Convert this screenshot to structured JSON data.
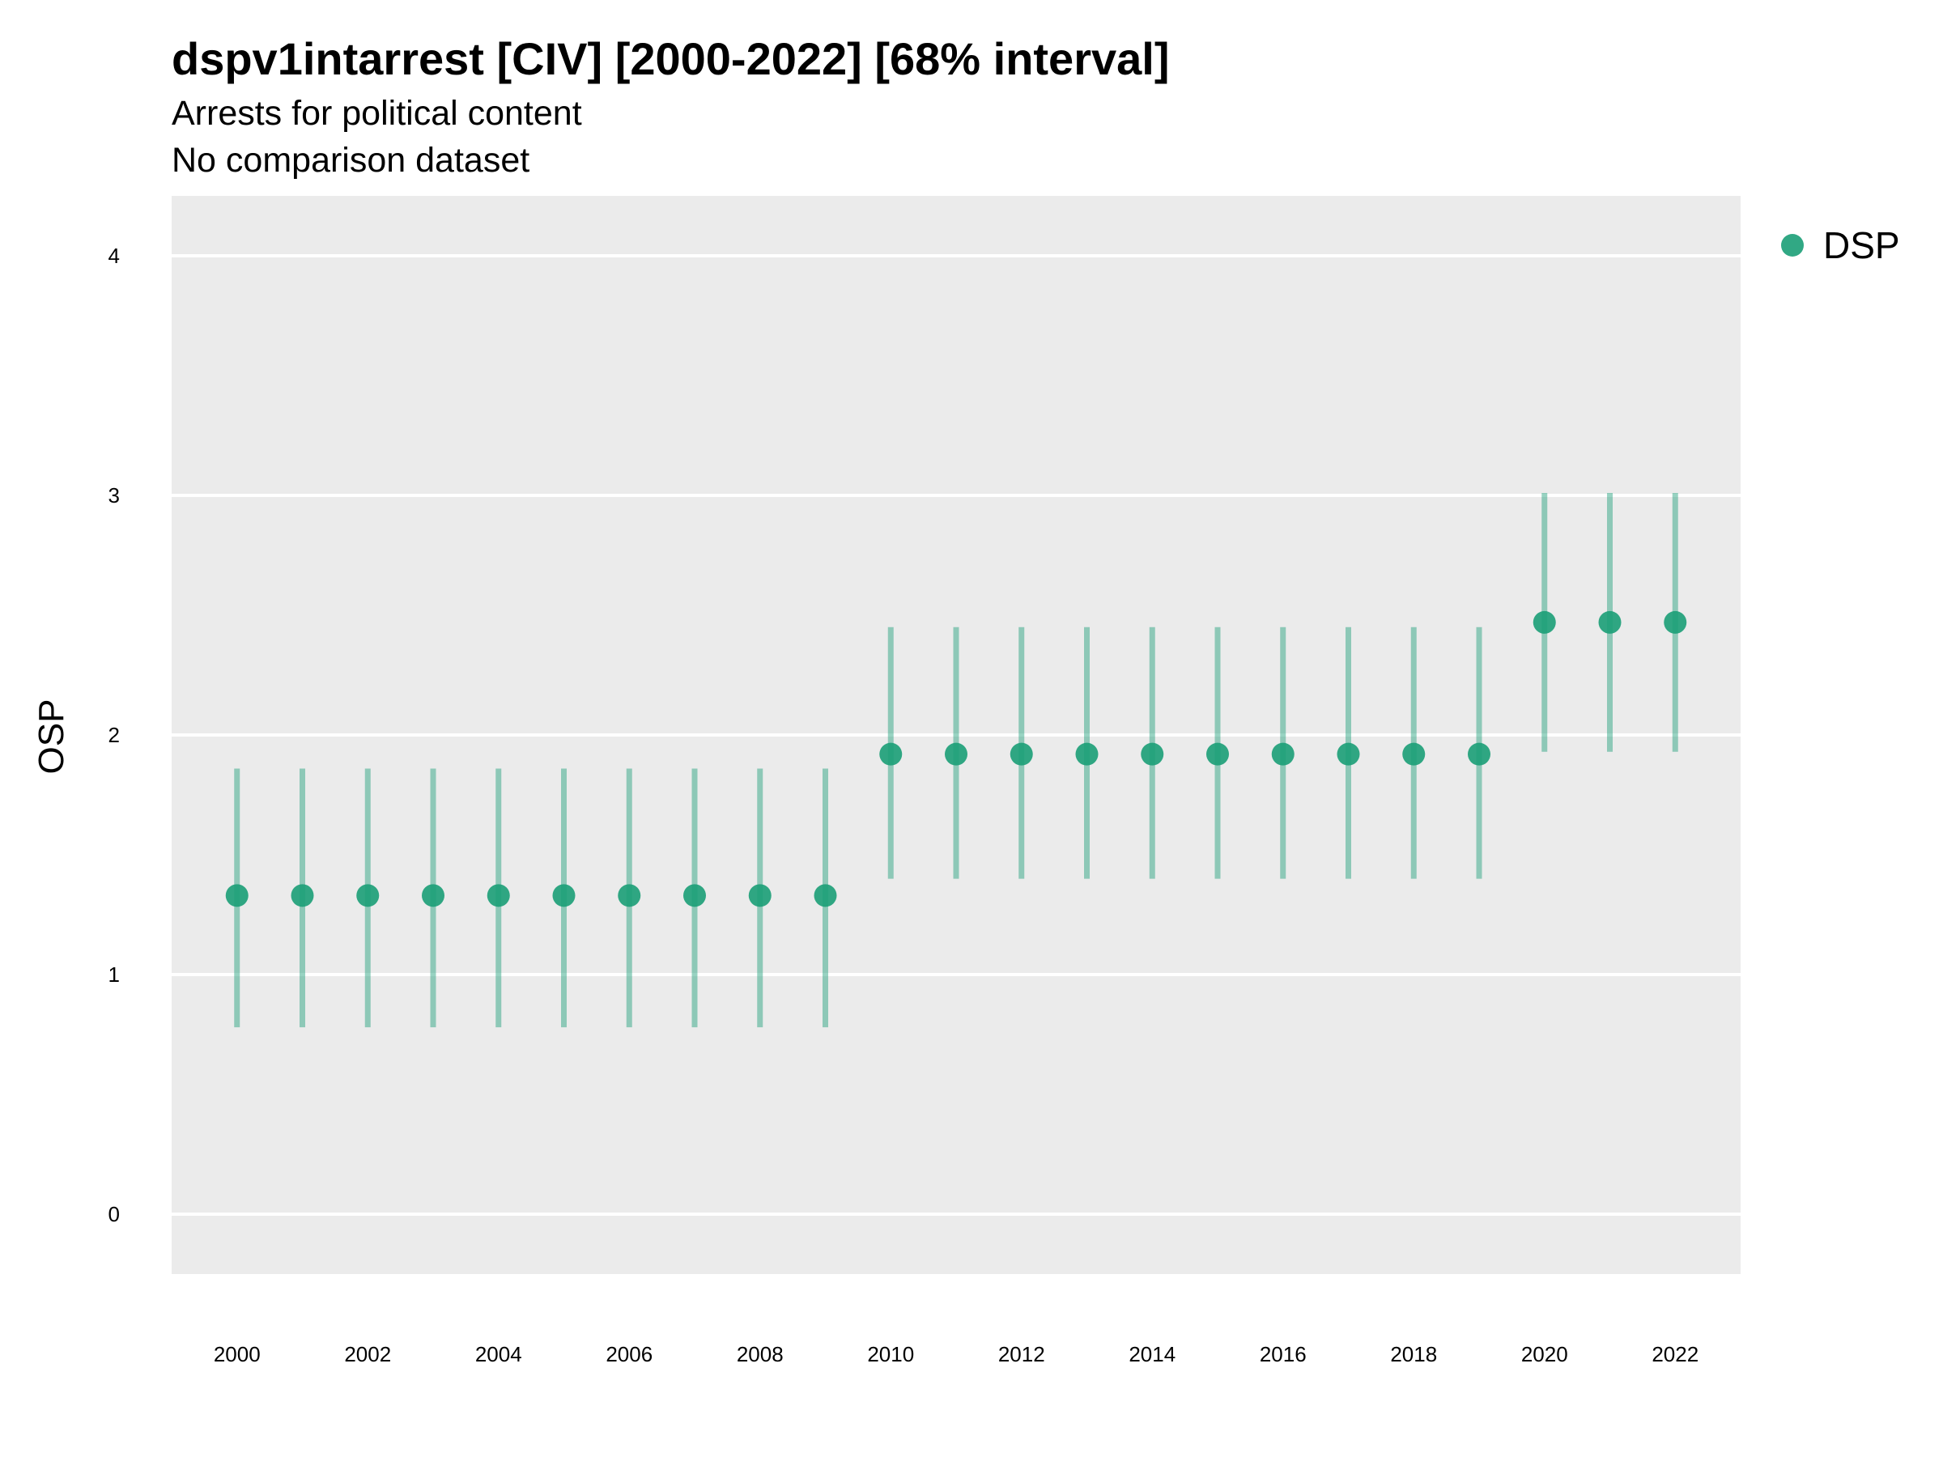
{
  "chart_data": {
    "type": "scatter",
    "title": "dspv1intarrest [CIV] [2000-2022] [68% interval]",
    "subtitle": [
      "Arrests for political content",
      "No comparison dataset"
    ],
    "xlabel": "",
    "ylabel": "OSP",
    "xlim": [
      1999,
      2023
    ],
    "ylim": [
      -0.25,
      4.25
    ],
    "x_ticks": [
      "2000",
      "2002",
      "2004",
      "2006",
      "2008",
      "2010",
      "2012",
      "2014",
      "2016",
      "2018",
      "2020",
      "2022"
    ],
    "y_ticks": [
      "0",
      "1",
      "2",
      "3",
      "4"
    ],
    "grid": true,
    "legend_position": "right",
    "series": [
      {
        "name": "DSP",
        "color": "#1b9e77",
        "points": [
          {
            "x": 2000,
            "y": 1.33,
            "low": 0.78,
            "high": 1.86
          },
          {
            "x": 2001,
            "y": 1.33,
            "low": 0.78,
            "high": 1.86
          },
          {
            "x": 2002,
            "y": 1.33,
            "low": 0.78,
            "high": 1.86
          },
          {
            "x": 2003,
            "y": 1.33,
            "low": 0.78,
            "high": 1.86
          },
          {
            "x": 2004,
            "y": 1.33,
            "low": 0.78,
            "high": 1.86
          },
          {
            "x": 2005,
            "y": 1.33,
            "low": 0.78,
            "high": 1.86
          },
          {
            "x": 2006,
            "y": 1.33,
            "low": 0.78,
            "high": 1.86
          },
          {
            "x": 2007,
            "y": 1.33,
            "low": 0.78,
            "high": 1.86
          },
          {
            "x": 2008,
            "y": 1.33,
            "low": 0.78,
            "high": 1.86
          },
          {
            "x": 2009,
            "y": 1.33,
            "low": 0.78,
            "high": 1.86
          },
          {
            "x": 2010,
            "y": 1.92,
            "low": 1.4,
            "high": 2.45
          },
          {
            "x": 2011,
            "y": 1.92,
            "low": 1.4,
            "high": 2.45
          },
          {
            "x": 2012,
            "y": 1.92,
            "low": 1.4,
            "high": 2.45
          },
          {
            "x": 2013,
            "y": 1.92,
            "low": 1.4,
            "high": 2.45
          },
          {
            "x": 2014,
            "y": 1.92,
            "low": 1.4,
            "high": 2.45
          },
          {
            "x": 2015,
            "y": 1.92,
            "low": 1.4,
            "high": 2.45
          },
          {
            "x": 2016,
            "y": 1.92,
            "low": 1.4,
            "high": 2.45
          },
          {
            "x": 2017,
            "y": 1.92,
            "low": 1.4,
            "high": 2.45
          },
          {
            "x": 2018,
            "y": 1.92,
            "low": 1.4,
            "high": 2.45
          },
          {
            "x": 2019,
            "y": 1.92,
            "low": 1.4,
            "high": 2.45
          },
          {
            "x": 2020,
            "y": 2.47,
            "low": 1.93,
            "high": 3.01
          },
          {
            "x": 2021,
            "y": 2.47,
            "low": 1.93,
            "high": 3.01
          },
          {
            "x": 2022,
            "y": 2.47,
            "low": 1.93,
            "high": 3.01
          }
        ]
      }
    ]
  },
  "colors": {
    "panel_background": "#ebebeb",
    "gridline": "#ffffff",
    "point": "#1b9e77",
    "interval": "#1b9e77"
  }
}
